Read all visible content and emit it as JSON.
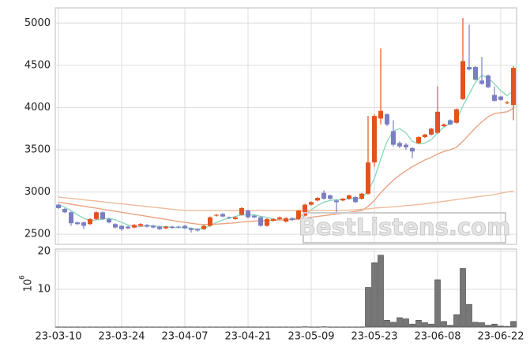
{
  "chart_data": [
    {
      "type": "candlestick",
      "categories": [
        "23-03-10",
        null,
        null,
        null,
        null,
        null,
        null,
        null,
        null,
        null,
        "23-03-24",
        null,
        null,
        null,
        null,
        null,
        null,
        null,
        null,
        null,
        "23-04-07",
        null,
        null,
        null,
        null,
        null,
        null,
        null,
        null,
        null,
        "23-04-21",
        null,
        null,
        null,
        null,
        null,
        null,
        null,
        null,
        null,
        "23-05-09",
        null,
        null,
        null,
        null,
        null,
        null,
        null,
        null,
        null,
        "23-05-23",
        null,
        null,
        null,
        null,
        null,
        null,
        null,
        null,
        null,
        "23-06-08",
        null,
        null,
        null,
        null,
        null,
        null,
        null,
        null,
        null,
        "23-06-22",
        null,
        null
      ],
      "open": [
        2850,
        2800,
        2760,
        2640,
        2640,
        2620,
        2680,
        2760,
        2680,
        2620,
        2600,
        2590,
        2580,
        2600,
        2610,
        2600,
        2590,
        2570,
        2590,
        2590,
        2600,
        2570,
        2560,
        2560,
        2600,
        2720,
        2740,
        2700,
        2680,
        2730,
        2780,
        2720,
        2700,
        2600,
        2660,
        2680,
        2650,
        2690,
        2680,
        2720,
        2850,
        2900,
        2990,
        2960,
        2900,
        2900,
        2920,
        2940,
        2920,
        2980,
        3350,
        3870,
        3920,
        3720,
        3580,
        3560,
        3520,
        3580,
        3650,
        3680,
        3700,
        3780,
        3850,
        3820,
        4100,
        4480,
        4480,
        4320,
        4380,
        4150,
        4130,
        4050,
        4030
      ],
      "high": [
        2860,
        2810,
        2770,
        2650,
        2650,
        2690,
        2770,
        2770,
        2690,
        2630,
        2610,
        2600,
        2620,
        2630,
        2620,
        2610,
        2600,
        2600,
        2600,
        2600,
        2610,
        2580,
        2570,
        2610,
        2710,
        2740,
        2750,
        2710,
        2710,
        2820,
        2790,
        2730,
        2710,
        2690,
        2690,
        2710,
        2700,
        2700,
        2790,
        2860,
        2890,
        2940,
        3020,
        2970,
        2910,
        2930,
        2970,
        2950,
        2990,
        3900,
        3920,
        4700,
        3930,
        3850,
        3600,
        3580,
        3530,
        3660,
        3690,
        3760,
        4250,
        3810,
        3860,
        3990,
        5060,
        4980,
        4490,
        4600,
        4390,
        4250,
        4140,
        4080,
        4490
      ],
      "low": [
        2800,
        2750,
        2600,
        2610,
        2560,
        2610,
        2670,
        2670,
        2630,
        2570,
        2540,
        2560,
        2570,
        2590,
        2580,
        2570,
        2550,
        2560,
        2565,
        2570,
        2560,
        2520,
        2530,
        2550,
        2590,
        2710,
        2700,
        2680,
        2670,
        2720,
        2690,
        2690,
        2590,
        2590,
        2650,
        2670,
        2640,
        2660,
        2670,
        2710,
        2840,
        2890,
        2910,
        2910,
        2760,
        2890,
        2910,
        2870,
        2910,
        2970,
        3300,
        3800,
        3780,
        3540,
        3520,
        3500,
        3400,
        3570,
        3640,
        3670,
        3690,
        3770,
        3790,
        3810,
        4090,
        4440,
        4320,
        4270,
        4230,
        4070,
        4080,
        4040,
        3850
      ],
      "close": [
        2810,
        2760,
        2630,
        2620,
        2600,
        2680,
        2760,
        2680,
        2640,
        2580,
        2560,
        2570,
        2610,
        2620,
        2590,
        2580,
        2560,
        2590,
        2575,
        2580,
        2570,
        2550,
        2545,
        2600,
        2700,
        2730,
        2710,
        2690,
        2700,
        2810,
        2700,
        2700,
        2600,
        2680,
        2680,
        2700,
        2690,
        2670,
        2780,
        2850,
        2880,
        2930,
        2920,
        2920,
        2880,
        2920,
        2960,
        2880,
        2980,
        3350,
        3900,
        3960,
        3800,
        3560,
        3540,
        3530,
        3480,
        3650,
        3680,
        3750,
        3950,
        3800,
        3800,
        3980,
        4550,
        4450,
        4330,
        4280,
        4240,
        4080,
        4090,
        4060,
        4470
      ],
      "up_color": "#e2531f",
      "down_color": "#7a7fc2",
      "moving_averages": [
        {
          "color": "#8ed9bd",
          "values": [
            2850,
            2820,
            2780,
            2730,
            2690,
            2660,
            2670,
            2680,
            2690,
            2670,
            2640,
            2610,
            2590,
            2590,
            2600,
            2600,
            2590,
            2590,
            2580,
            2580,
            2580,
            2570,
            2560,
            2570,
            2600,
            2640,
            2670,
            2690,
            2710,
            2730,
            2730,
            2730,
            2710,
            2700,
            2680,
            2670,
            2670,
            2680,
            2700,
            2740,
            2790,
            2840,
            2880,
            2900,
            2910,
            2910,
            2920,
            2920,
            2930,
            3010,
            3160,
            3390,
            3600,
            3720,
            3750,
            3700,
            3600,
            3570,
            3580,
            3620,
            3700,
            3770,
            3810,
            3850,
            4020,
            4160,
            4300,
            4380,
            4350,
            4280,
            4200,
            4140,
            4200
          ]
        },
        {
          "color": "#e9a383",
          "values": [
            2880,
            2868,
            2856,
            2844,
            2832,
            2820,
            2808,
            2796,
            2784,
            2772,
            2760,
            2748,
            2736,
            2724,
            2712,
            2700,
            2688,
            2676,
            2664,
            2652,
            2640,
            2630,
            2620,
            2615,
            2615,
            2620,
            2625,
            2630,
            2635,
            2645,
            2650,
            2655,
            2660,
            2662,
            2665,
            2668,
            2670,
            2672,
            2680,
            2690,
            2700,
            2710,
            2720,
            2730,
            2740,
            2750,
            2760,
            2770,
            2780,
            2830,
            2900,
            2990,
            3070,
            3140,
            3200,
            3250,
            3300,
            3340,
            3380,
            3410,
            3450,
            3480,
            3500,
            3530,
            3600,
            3680,
            3760,
            3830,
            3890,
            3930,
            3940,
            3950,
            3990
          ]
        },
        {
          "color": "#efbb9c",
          "values": [
            2940,
            2932,
            2924,
            2916,
            2908,
            2900,
            2892,
            2884,
            2876,
            2868,
            2860,
            2852,
            2844,
            2836,
            2828,
            2820,
            2812,
            2804,
            2796,
            2788,
            2780,
            2780,
            2780,
            2780,
            2780,
            2780,
            2780,
            2780,
            2780,
            2780,
            2780,
            2780,
            2780,
            2780,
            2780,
            2780,
            2780,
            2780,
            2780,
            2780,
            2780,
            2780,
            2780,
            2780,
            2780,
            2780,
            2785,
            2790,
            2795,
            2800,
            2810,
            2815,
            2820,
            2825,
            2830,
            2840,
            2845,
            2850,
            2860,
            2870,
            2880,
            2890,
            2900,
            2910,
            2920,
            2930,
            2940,
            2950,
            2960,
            2970,
            2985,
            3000,
            3010
          ]
        }
      ],
      "ylim": [
        2380,
        5180
      ],
      "yticks": [
        2500,
        3000,
        3500,
        4000,
        4500,
        5000
      ],
      "grid": true,
      "annotation": "BestListens.com"
    },
    {
      "type": "bar",
      "values": [
        0.05,
        0.05,
        0.05,
        0.05,
        0.05,
        0.05,
        0.05,
        0.05,
        0.05,
        0.05,
        0.05,
        0.05,
        0.05,
        0.05,
        0.05,
        0.05,
        0.05,
        0.05,
        0.05,
        0.05,
        0.05,
        0.05,
        0.05,
        0.05,
        0.05,
        0.05,
        0.05,
        0.05,
        0.05,
        0.05,
        0.05,
        0.05,
        0.05,
        0.05,
        0.05,
        0.05,
        0.05,
        0.05,
        0.05,
        0.1,
        0.05,
        0.05,
        0.1,
        0.05,
        0.05,
        0.05,
        0.05,
        0.05,
        0.05,
        10.5,
        17,
        19,
        1.8,
        1.3,
        2.5,
        2.2,
        0.8,
        1.8,
        1.2,
        0.8,
        12.5,
        1.5,
        0.5,
        3.3,
        15.5,
        6,
        1.3,
        1.2,
        0.5,
        0.8,
        0.3,
        0.2,
        1.5
      ],
      "color": "#777777",
      "ylim": [
        0,
        20.6
      ],
      "yticks": [
        10,
        20
      ],
      "grid": true,
      "offset_label": {
        "base": "10",
        "exponent": "6"
      }
    }
  ]
}
